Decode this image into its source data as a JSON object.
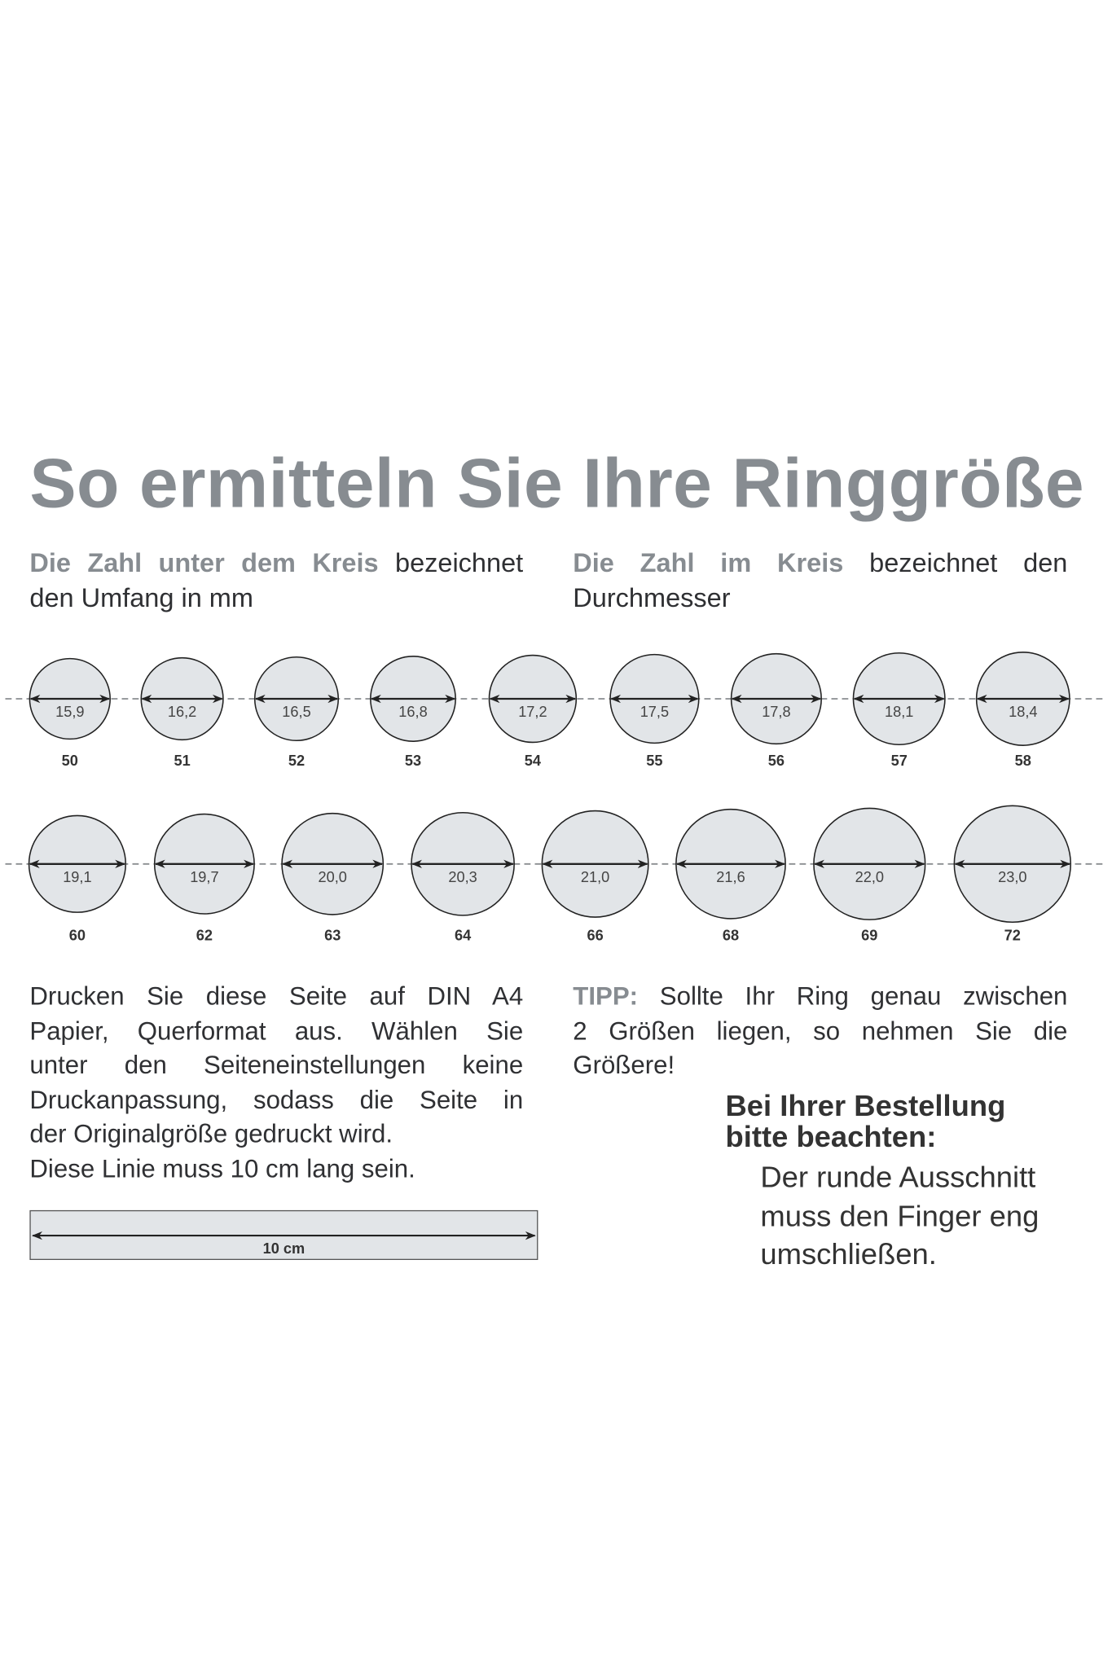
{
  "title": "So ermitteln Sie Ihre Ringgröße",
  "intro_left": {
    "highlight": "Die Zahl unter dem Kreis",
    "rest": " bezeichnet den Umfang in mm"
  },
  "intro_right": {
    "highlight_words": [
      "Die",
      "Zahl",
      "im",
      "Kreis"
    ],
    "rest_words": [
      "bezeichnet",
      "den"
    ],
    "line2": "Durchmesser"
  },
  "ring_rows": [
    [
      {
        "diameter": "15,9",
        "size": "50"
      },
      {
        "diameter": "16,2",
        "size": "51"
      },
      {
        "diameter": "16,5",
        "size": "52"
      },
      {
        "diameter": "16,8",
        "size": "53"
      },
      {
        "diameter": "17,2",
        "size": "54"
      },
      {
        "diameter": "17,5",
        "size": "55"
      },
      {
        "diameter": "17,8",
        "size": "56"
      },
      {
        "diameter": "18,1",
        "size": "57"
      },
      {
        "diameter": "18,4",
        "size": "58"
      }
    ],
    [
      {
        "diameter": "19,1",
        "size": "60"
      },
      {
        "diameter": "19,7",
        "size": "62"
      },
      {
        "diameter": "20,0",
        "size": "63"
      },
      {
        "diameter": "20,3",
        "size": "64"
      },
      {
        "diameter": "21,0",
        "size": "66"
      },
      {
        "diameter": "21,6",
        "size": "68"
      },
      {
        "diameter": "22,0",
        "size": "69"
      },
      {
        "diameter": "23,0",
        "size": "72"
      }
    ]
  ],
  "print_instructions": [
    "Drucken Sie diese Seite auf DIN A4",
    "Papier, Querformat aus. Wählen Sie",
    "unter den Seiteneinstellungen keine",
    "Druckanpassung, sodass die Seite in",
    "der Originalgröße gedruckt wird.",
    "Diese Linie muss 10 cm lang sein."
  ],
  "tip": {
    "label": "TIPP:",
    "lines": [
      " Sollte Ihr Ring genau zwischen",
      "2 Größen liegen, so nehmen Sie die",
      "Größere!"
    ]
  },
  "order_note": {
    "title_lines": [
      "Bei Ihrer Bestellung",
      "bitte beachten:"
    ],
    "lines": [
      "Der runde Ausschnitt",
      "muss den Finger eng",
      "umschließen."
    ]
  },
  "ruler": {
    "label": "10 cm"
  },
  "colors": {
    "accent_gray": "#878c91",
    "circle_fill": "#e2e5e8",
    "text": "#2f3033"
  }
}
